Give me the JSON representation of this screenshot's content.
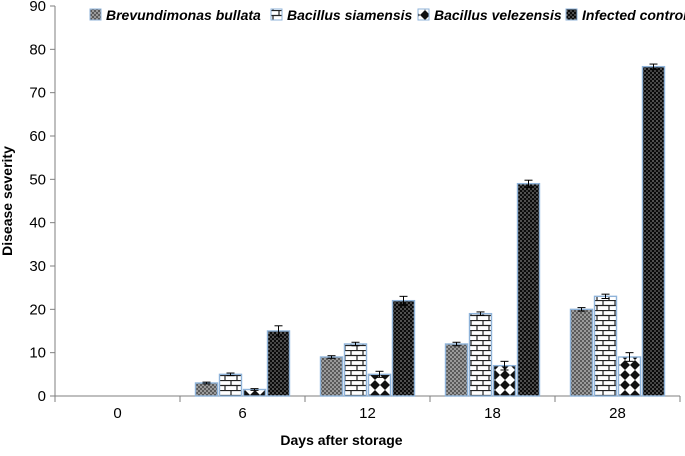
{
  "chart_data": {
    "type": "bar",
    "title": "",
    "xlabel": "Days after storage",
    "ylabel": "Disease severity",
    "ylim": [
      0,
      90
    ],
    "yticks": [
      0,
      10,
      20,
      30,
      40,
      50,
      60,
      70,
      80,
      90
    ],
    "categories": [
      "0",
      "6",
      "12",
      "18",
      "28"
    ],
    "legend_position": "top",
    "grid": false,
    "series": [
      {
        "name": "Brevundimonas bullata",
        "pattern": "crosshatch-gray",
        "values": [
          0,
          3,
          9,
          12,
          20
        ],
        "errors": [
          0,
          0.2,
          0.3,
          0.4,
          0.4
        ]
      },
      {
        "name": "Bacillus siamensis",
        "pattern": "brick",
        "values": [
          0,
          5,
          12,
          19,
          23
        ],
        "errors": [
          0,
          0.3,
          0.4,
          0.4,
          0.5
        ]
      },
      {
        "name": "Bacillus velezensis",
        "pattern": "large-checker",
        "values": [
          0,
          1.5,
          5,
          7,
          9
        ],
        "errors": [
          0,
          0.2,
          0.7,
          1.0,
          1.0
        ]
      },
      {
        "name": "Infected control",
        "pattern": "dark-dots",
        "values": [
          0,
          15,
          22,
          49,
          76
        ],
        "errors": [
          0,
          1.2,
          1.0,
          0.8,
          0.6
        ]
      }
    ],
    "colors": {
      "bar_outline": "#8fb3d9",
      "axis": "#7f7f7f"
    }
  }
}
